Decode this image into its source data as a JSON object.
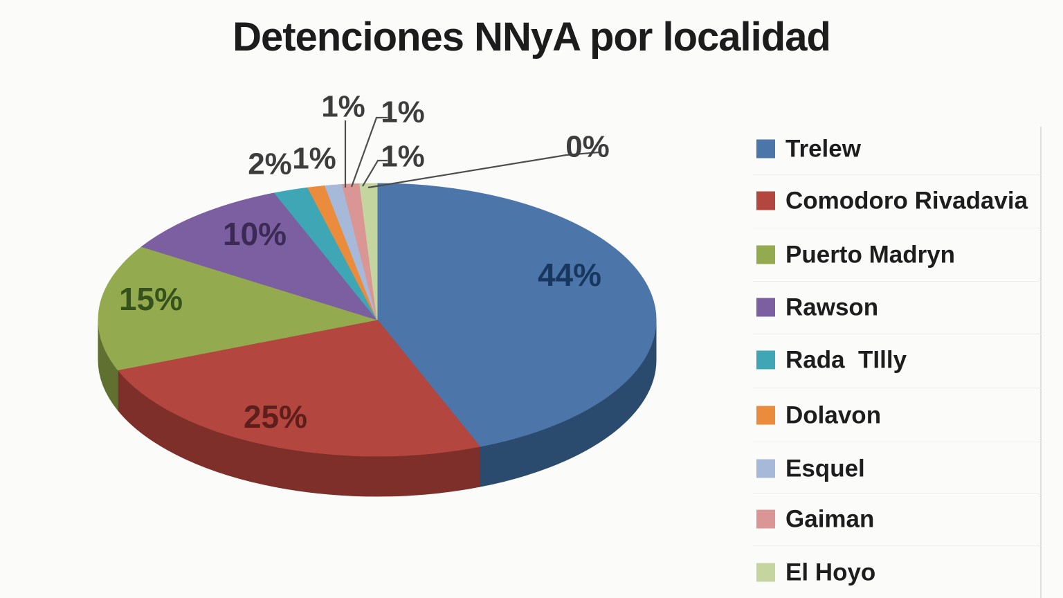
{
  "chart_data": {
    "type": "pie",
    "is_3d": true,
    "title": "Detenciones NNyA por localidad",
    "legend_position": "right",
    "background": "#fbfbfa",
    "categories": [
      "Trelew",
      "Comodoro Rivadavia",
      "Puerto Madryn",
      "Rawson",
      "Rada  TIlly",
      "Dolavon",
      "Esquel",
      "Gaiman",
      "El Hoyo"
    ],
    "values_percent": [
      44,
      25,
      15,
      10,
      2,
      1,
      1,
      1,
      1
    ],
    "percent_labels_visible": [
      "44%",
      "25%",
      "15%",
      "10%",
      "2%",
      "1%",
      "1%",
      "1%",
      "1%",
      "0%"
    ],
    "extra_percent_label": "0%",
    "slices": [
      {
        "label": "Trelew",
        "percent": 44,
        "percent_label": "44%",
        "color": "#4c75a9",
        "wall_color": "#2b4b6e",
        "value_label_color": "#17375e"
      },
      {
        "label": "Comodoro Rivadavia",
        "percent": 25,
        "percent_label": "25%",
        "color": "#b3463f",
        "wall_color": "#7e2f2a",
        "value_label_color": "#5e1f1c"
      },
      {
        "label": "Puerto Madryn",
        "percent": 15,
        "percent_label": "15%",
        "color": "#94aa4f",
        "wall_color": "#5f7031",
        "value_label_color": "#36521c"
      },
      {
        "label": "Rawson",
        "percent": 10,
        "percent_label": "10%",
        "color": "#7c5fa1",
        "value_label_color": "#3a2a54"
      },
      {
        "label": "Rada  TIlly",
        "percent": 2,
        "percent_label": "2%",
        "color": "#3ea6b5"
      },
      {
        "label": "Dolavon",
        "percent": 1,
        "percent_label": "1%",
        "color": "#ea8c3b"
      },
      {
        "label": "Esquel",
        "percent": 1,
        "percent_label": "1%",
        "color": "#a6b9d8"
      },
      {
        "label": "Gaiman",
        "percent": 1,
        "percent_label": "1%",
        "color": "#d99694"
      },
      {
        "label": "El Hoyo",
        "percent": 1,
        "percent_label": "1%",
        "color": "#c5d5a0"
      }
    ],
    "small_value_label_color": "#3d3d3d",
    "leader_line_color": "#4d4d4d",
    "table_border_color": "#dcdcdc"
  }
}
